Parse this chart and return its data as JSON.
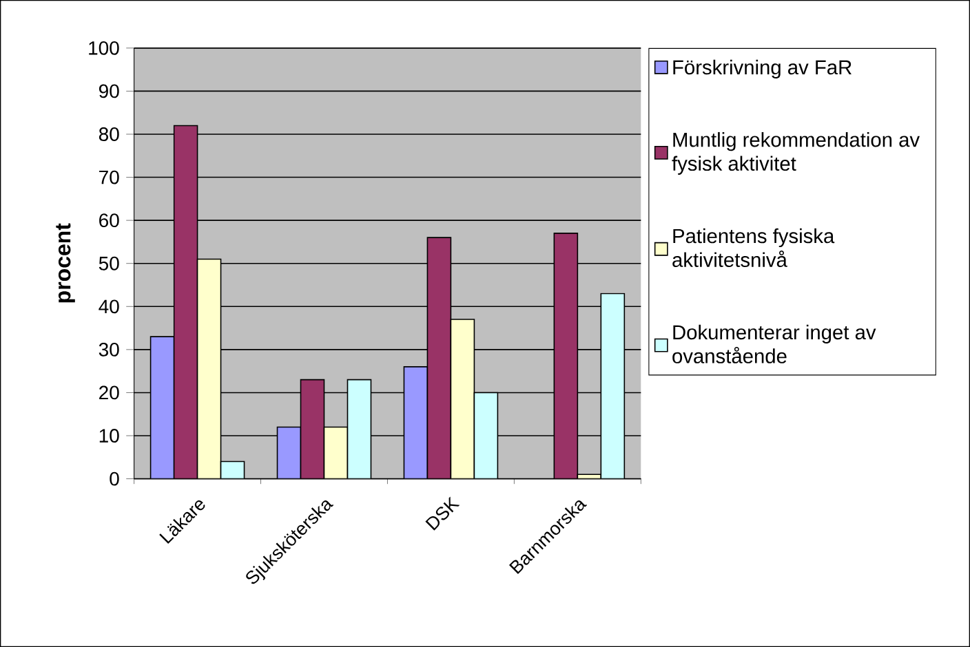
{
  "chart_data": {
    "type": "bar",
    "ylabel": "procent",
    "categories": [
      "Läkare",
      "Sjuksköterska",
      "DSK",
      "Barnmorska"
    ],
    "series": [
      {
        "name": "Förskrivning av FaR",
        "color": "#9999ff",
        "values": [
          33,
          12,
          26,
          null
        ]
      },
      {
        "name": "Muntlig rekommendation av fysisk aktivitet",
        "color": "#993366",
        "values": [
          82,
          23,
          56,
          57
        ]
      },
      {
        "name": "Patientens fysiska aktivitetsnivå",
        "color": "#ffffcc",
        "values": [
          51,
          12,
          37,
          1
        ]
      },
      {
        "name": "Dokumenterar inget av ovanstående",
        "color": "#ccffff",
        "values": [
          4,
          23,
          20,
          43
        ]
      }
    ],
    "ylim": [
      0,
      100
    ],
    "yticks": [
      0,
      10,
      20,
      30,
      40,
      50,
      60,
      70,
      80,
      90,
      100
    ],
    "grid": "y",
    "legend": "right"
  }
}
